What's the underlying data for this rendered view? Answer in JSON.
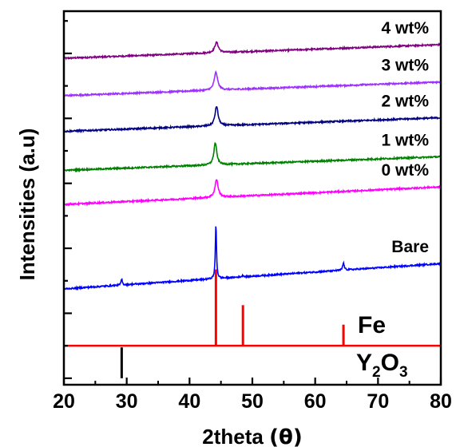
{
  "chart_data": {
    "type": "line",
    "title": "",
    "xlabel": "2theta",
    "xlabel_symbol": "(θ)",
    "ylabel": "Intensities (a.u)",
    "xlim": [
      20,
      80
    ],
    "x_ticks": [
      "20",
      "30",
      "40",
      "50",
      "60",
      "70",
      "80"
    ],
    "y_ticks_labeled": false,
    "grid": false,
    "legend": "inline labels at right end of each trace",
    "series": [
      {
        "name": "4 wt%",
        "color": "#800080",
        "baseline": 9.85,
        "slope": 0.007,
        "noise": 0.022,
        "peaks": [
          {
            "x": 44.3,
            "h": 0.32,
            "w": 0.7
          }
        ]
      },
      {
        "name": "3 wt%",
        "color": "#9b30ff",
        "baseline": 8.7,
        "slope": 0.007,
        "noise": 0.022,
        "peaks": [
          {
            "x": 44.2,
            "h": 0.55,
            "w": 0.65
          }
        ]
      },
      {
        "name": "2 wt%",
        "color": "#000080",
        "baseline": 7.6,
        "slope": 0.007,
        "noise": 0.022,
        "peaks": [
          {
            "x": 44.3,
            "h": 0.6,
            "w": 0.6
          }
        ]
      },
      {
        "name": "1 wt%",
        "color": "#008000",
        "baseline": 6.4,
        "slope": 0.007,
        "noise": 0.022,
        "peaks": [
          {
            "x": 44.1,
            "h": 0.68,
            "w": 0.55
          }
        ]
      },
      {
        "name": "0 wt%",
        "color": "#ff00ff",
        "baseline": 5.35,
        "slope": 0.009,
        "noise": 0.022,
        "peaks": [
          {
            "x": 44.3,
            "h": 0.55,
            "w": 0.6
          }
        ]
      },
      {
        "name": "Bare",
        "color": "#0000ff",
        "baseline": 2.75,
        "slope": 0.013,
        "noise": 0.022,
        "peaks": [
          {
            "x": 44.2,
            "h": 1.65,
            "w": 0.22
          },
          {
            "x": 29.2,
            "h": 0.18,
            "w": 0.25
          },
          {
            "x": 64.5,
            "h": 0.22,
            "w": 0.3
          },
          {
            "x": 48.5,
            "h": 0.05,
            "w": 0.3
          }
        ]
      }
    ],
    "reference_patterns": [
      {
        "name": "Fe",
        "color": "#ff0000",
        "baseline": 1.0,
        "peaks": [
          {
            "x": 44.2,
            "h": 2.35
          },
          {
            "x": 48.5,
            "h": 1.25
          },
          {
            "x": 64.5,
            "h": 0.65
          }
        ]
      },
      {
        "name": "Y",
        "sub": "2",
        "name2": "O",
        "sub2": "3",
        "color": "#000000",
        "baseline": 0.0,
        "peaks": [
          {
            "x": 29.2,
            "h": 0.95
          }
        ]
      }
    ],
    "ylim": [
      -0.2,
      11.3
    ]
  }
}
